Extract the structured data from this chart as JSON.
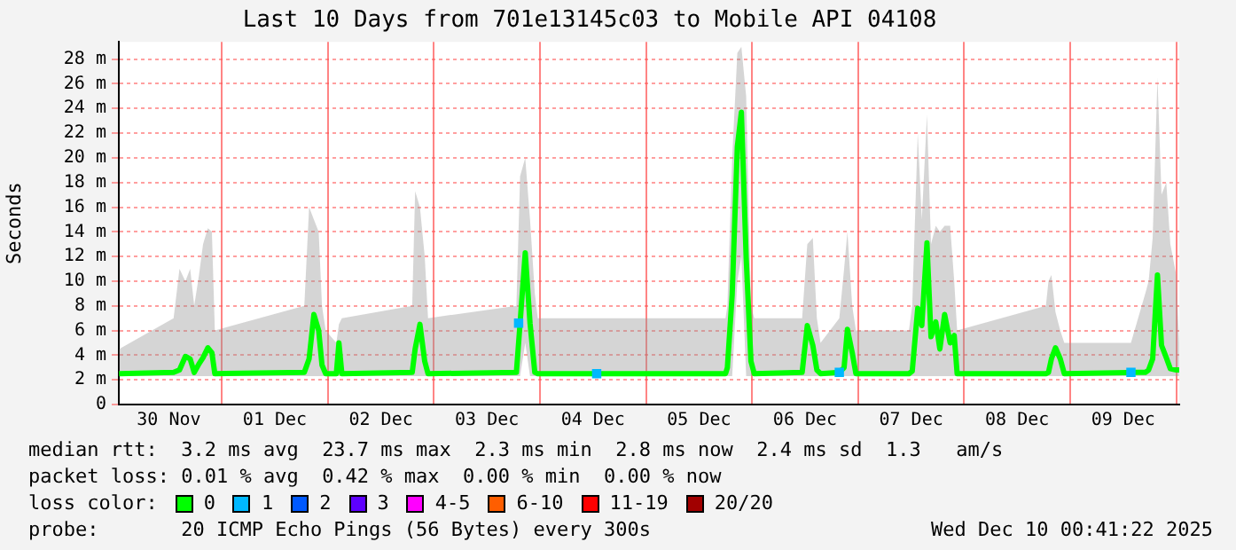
{
  "chart_data": {
    "type": "line",
    "title": "Last 10 Days from 701e13145c03 to Mobile API 04108",
    "ylabel": "Seconds",
    "legend_title": "loss color:",
    "legend": "bottom",
    "grid": true,
    "marker": "none",
    "line_style": "solid",
    "xlim": [
      "2025-11-30T00:41",
      "2025-12-10T00:41"
    ],
    "xticks": [
      {
        "value": "2025-11-30T12:00",
        "label": "30 Nov"
      },
      {
        "value": "2025-12-01T00:00",
        "label": null
      },
      {
        "value": "2025-12-01T12:00",
        "label": "01 Dec"
      },
      {
        "value": "2025-12-02T00:00",
        "label": null
      },
      {
        "value": "2025-12-02T12:00",
        "label": "02 Dec"
      },
      {
        "value": "2025-12-03T00:00",
        "label": null
      },
      {
        "value": "2025-12-03T12:00",
        "label": "03 Dec"
      },
      {
        "value": "2025-12-04T00:00",
        "label": null
      },
      {
        "value": "2025-12-04T12:00",
        "label": "04 Dec"
      },
      {
        "value": "2025-12-05T00:00",
        "label": null
      },
      {
        "value": "2025-12-05T12:00",
        "label": "05 Dec"
      },
      {
        "value": "2025-12-06T00:00",
        "label": null
      },
      {
        "value": "2025-12-06T12:00",
        "label": "06 Dec"
      },
      {
        "value": "2025-12-07T00:00",
        "label": null
      },
      {
        "value": "2025-12-07T12:00",
        "label": "07 Dec"
      },
      {
        "value": "2025-12-08T00:00",
        "label": null
      },
      {
        "value": "2025-12-08T12:00",
        "label": "08 Dec"
      },
      {
        "value": "2025-12-09T00:00",
        "label": null
      },
      {
        "value": "2025-12-09T12:00",
        "label": "09 Dec"
      },
      {
        "value": "2025-12-10T00:00",
        "label": null
      }
    ],
    "ylim": [
      0,
      29.4
    ],
    "yticks": [
      0,
      {
        "value": 2,
        "label": "2 m"
      },
      {
        "value": 4,
        "label": "4 m"
      },
      {
        "value": 6,
        "label": "6 m"
      },
      {
        "value": 8,
        "label": "8 m"
      },
      {
        "value": 10,
        "label": "10 m"
      },
      {
        "value": 12,
        "label": "12 m"
      },
      {
        "value": 14,
        "label": "14 m"
      },
      {
        "value": 16,
        "label": "16 m"
      },
      {
        "value": 18,
        "label": "18 m"
      },
      {
        "value": 20,
        "label": "20 m"
      },
      {
        "value": 22,
        "label": "22 m"
      },
      {
        "value": 24,
        "label": "24 m"
      },
      {
        "value": 26,
        "label": "26 m"
      },
      {
        "value": 28,
        "label": "28 m"
      }
    ],
    "series": [
      {
        "name": "0",
        "color": "#00ff00",
        "x": [
          "2025-11-30T00:45",
          "2025-11-30T13:05",
          "2025-11-30T14:25",
          "2025-11-30T15:45",
          "2025-11-30T16:50",
          "2025-11-30T17:45",
          "2025-11-30T18:50",
          "2025-11-30T19:45",
          "2025-11-30T20:50",
          "2025-11-30T21:45",
          "2025-11-30T22:25",
          "2025-12-01T18:40",
          "2025-12-01T19:45",
          "2025-12-01T20:50",
          "2025-12-01T21:55",
          "2025-12-01T22:40",
          "2025-12-01T23:30",
          "2025-12-02T01:55",
          "2025-12-02T02:30",
          "2025-12-02T03:10",
          "2025-12-02T19:05",
          "2025-12-02T19:45",
          "2025-12-02T20:50",
          "2025-12-02T21:55",
          "2025-12-02T22:40",
          "2025-12-03T18:40",
          "2025-12-03T19:30",
          "2025-12-03T20:40",
          "2025-12-03T21:45",
          "2025-12-03T22:50",
          "2025-12-03T23:30",
          "2025-12-05T18:00",
          "2025-12-05T18:25",
          "2025-12-05T19:30",
          "2025-12-05T20:40",
          "2025-12-05T21:35",
          "2025-12-05T22:40",
          "2025-12-05T23:45",
          "2025-12-06T00:30",
          "2025-12-06T11:20",
          "2025-12-06T12:30",
          "2025-12-06T13:45",
          "2025-12-06T14:40",
          "2025-12-06T15:30",
          "2025-12-06T19:45",
          "2025-12-06T20:50",
          "2025-12-06T21:35",
          "2025-12-06T22:40",
          "2025-12-06T23:30",
          "2025-12-07T11:30",
          "2025-12-07T12:15",
          "2025-12-07T13:30",
          "2025-12-07T14:25",
          "2025-12-07T15:35",
          "2025-12-07T16:30",
          "2025-12-07T17:35",
          "2025-12-07T18:30",
          "2025-12-07T19:35",
          "2025-12-07T20:50",
          "2025-12-07T21:45",
          "2025-12-07T22:25",
          "2025-12-08T18:30",
          "2025-12-08T19:05",
          "2025-12-08T19:45",
          "2025-12-08T20:40",
          "2025-12-08T21:45",
          "2025-12-08T22:40",
          "2025-12-09T13:45",
          "2025-12-09T17:00",
          "2025-12-09T17:45",
          "2025-12-09T18:40",
          "2025-12-09T19:45",
          "2025-12-09T20:40",
          "2025-12-09T21:45",
          "2025-12-09T22:40",
          "2025-12-10T00:00",
          "2025-12-10T00:40"
        ],
        "values": [
          2.5,
          2.6,
          2.8,
          3.9,
          3.7,
          2.6,
          3.3,
          3.8,
          4.6,
          4.2,
          2.5,
          2.6,
          3.7,
          7.3,
          6.0,
          3.2,
          2.5,
          2.5,
          5.0,
          2.5,
          2.6,
          4.5,
          6.5,
          3.5,
          2.5,
          2.6,
          6.6,
          12.3,
          6.6,
          2.6,
          2.5,
          2.5,
          3.0,
          8.9,
          20.9,
          23.7,
          11.9,
          3.5,
          2.5,
          2.6,
          6.4,
          4.8,
          2.8,
          2.5,
          2.6,
          3.0,
          6.1,
          4.2,
          2.5,
          2.5,
          2.7,
          7.8,
          6.4,
          13.1,
          5.5,
          6.7,
          4.5,
          7.3,
          5.0,
          5.6,
          2.5,
          2.5,
          2.6,
          3.7,
          4.6,
          3.7,
          2.5,
          2.6,
          2.6,
          2.8,
          3.7,
          10.5,
          4.8,
          3.8,
          2.9,
          2.8,
          2.8
        ],
        "lower": [
          2.3,
          2.3,
          2.3,
          2.3,
          2.3,
          2.3,
          2.3,
          2.3,
          2.3,
          2.3,
          2.3,
          2.3,
          2.3,
          2.3,
          2.3,
          2.3,
          2.3,
          2.3,
          2.3,
          2.3,
          2.3,
          2.3,
          2.3,
          2.3,
          2.3,
          2.3,
          2.3,
          5,
          2.3,
          2.3,
          2.3,
          2.3,
          2.3,
          2.3,
          10,
          12,
          2.3,
          2.3,
          2.3,
          2.3,
          2.3,
          2.3,
          2.3,
          2.3,
          2.3,
          2.3,
          2.3,
          2.3,
          2.3,
          2.3,
          2.3,
          2.3,
          2.3,
          2.3,
          2.3,
          2.3,
          2.3,
          2.3,
          2.3,
          2.3,
          2.3,
          2.3,
          2.3,
          2.3,
          2.3,
          2.3,
          2.3,
          2.3,
          2.3,
          2.3,
          2.3,
          2.3,
          2.3,
          2.3,
          2.3,
          2.3,
          2.3
        ],
        "upper": [
          4.5,
          7,
          11,
          10,
          11,
          8,
          10.5,
          13,
          14.3,
          14,
          6,
          8,
          16,
          15,
          14,
          8,
          6,
          5,
          6.5,
          7,
          8,
          17.3,
          16,
          12,
          7,
          8,
          18.5,
          20,
          15,
          9,
          7,
          7,
          8,
          20,
          28.5,
          29,
          25,
          8,
          7,
          7,
          13,
          13.5,
          7,
          5,
          7,
          11,
          14,
          8,
          6,
          6,
          8,
          22,
          15,
          23.5,
          13,
          14.5,
          14,
          14.5,
          14.5,
          10,
          6,
          8,
          10,
          10.5,
          7.5,
          6,
          5,
          5,
          9,
          10,
          13.5,
          26.5,
          17,
          18,
          13,
          10.5,
          5
        ]
      },
      {
        "name": "1",
        "color": "#00b8ff",
        "type": "scatter",
        "marker": "square",
        "x": [
          "2025-12-03T19:10",
          "2025-12-04T12:50",
          "2025-12-06T19:45",
          "2025-12-09T13:45"
        ],
        "values": [
          6.6,
          2.5,
          2.6,
          2.6
        ]
      },
      {
        "name": "2",
        "color": "#0059ff",
        "type": "scatter"
      },
      {
        "name": "3",
        "color": "#5e00ff",
        "type": "scatter"
      },
      {
        "name": "4-5",
        "color": "#ff00ff",
        "type": "scatter"
      },
      {
        "name": "6-10",
        "color": "#ff5e00",
        "type": "scatter"
      },
      {
        "name": "11-19",
        "color": "#ff0000",
        "type": "scatter"
      },
      {
        "name": "20/20",
        "color": "#a10000",
        "type": "scatter"
      }
    ],
    "annotations": [
      "median rtt:  3.2 ms avg  23.7 ms max  2.3 ms min  2.8 ms now  2.4 ms sd  1.3   am/s",
      "packet loss: 0.01 % avg  0.42 % max  0.00 % min  0.00 % now",
      "probe:       20 ICMP Echo Pings (56 Bytes) every 300s",
      "Wed Dec 10 00:41:22 2025"
    ]
  }
}
